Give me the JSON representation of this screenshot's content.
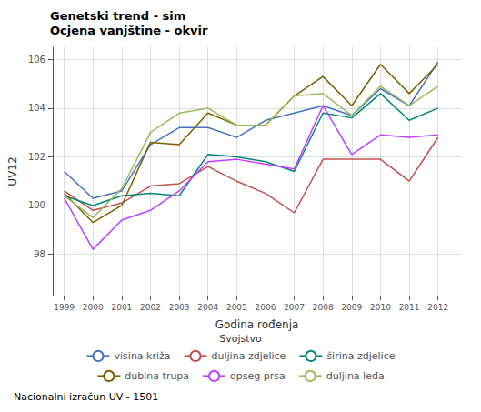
{
  "chart_data": {
    "type": "line",
    "title": "Genetski trend - sim",
    "subtitle": "Ocjena vanjštine - okvir",
    "xlabel": "Godina rođenja",
    "ylabel": "UV12",
    "legend_title": "Svojstvo",
    "annotations": [
      "Nacionalni izračun UV - 1501"
    ],
    "x": [
      1999,
      2000,
      2001,
      2002,
      2003,
      2004,
      2005,
      2006,
      2007,
      2008,
      2009,
      2010,
      2011,
      2012
    ],
    "xlim": [
      1998.6,
      2012.8
    ],
    "xticks": [
      1999,
      2000,
      2001,
      2002,
      2003,
      2004,
      2005,
      2006,
      2007,
      2008,
      2009,
      2010,
      2011,
      2012
    ],
    "ylim": [
      96.3,
      106.5
    ],
    "yticks": [
      98,
      100,
      102,
      104,
      106
    ],
    "grid": true,
    "legend": "bottom",
    "series": [
      {
        "name": "visina križa",
        "color": "#4472c4",
        "values": [
          101.4,
          100.3,
          100.6,
          102.5,
          103.2,
          103.2,
          102.8,
          103.5,
          103.8,
          104.1,
          103.7,
          104.8,
          104.1,
          105.9
        ]
      },
      {
        "name": "duljina zdjelice",
        "color": "#c0504d",
        "values": [
          100.6,
          99.8,
          100.1,
          100.8,
          100.9,
          101.6,
          101.0,
          100.5,
          99.7,
          101.9,
          101.9,
          101.9,
          101.0,
          102.8
        ]
      },
      {
        "name": "širina zdjelice",
        "color": "#00877a",
        "values": [
          100.4,
          100.0,
          100.4,
          100.5,
          100.4,
          102.1,
          102.0,
          101.8,
          101.4,
          103.8,
          103.6,
          104.6,
          103.5,
          104.0
        ]
      },
      {
        "name": "dubina trupa",
        "color": "#7f6000",
        "values": [
          100.5,
          99.3,
          100.0,
          102.6,
          102.5,
          103.8,
          103.3,
          103.3,
          104.5,
          105.3,
          104.1,
          105.8,
          104.6,
          105.8
        ]
      },
      {
        "name": "opseg prsa",
        "color": "#bf3eff",
        "values": [
          100.3,
          98.2,
          99.4,
          99.8,
          100.6,
          101.8,
          101.9,
          101.7,
          101.5,
          104.1,
          102.1,
          102.9,
          102.8,
          102.9
        ]
      },
      {
        "name": "duljina leđa",
        "color": "#9bbb59",
        "values": [
          100.4,
          99.5,
          100.7,
          103.0,
          103.8,
          104.0,
          103.3,
          103.3,
          104.5,
          104.6,
          103.7,
          104.9,
          104.1,
          104.9
        ]
      }
    ]
  }
}
